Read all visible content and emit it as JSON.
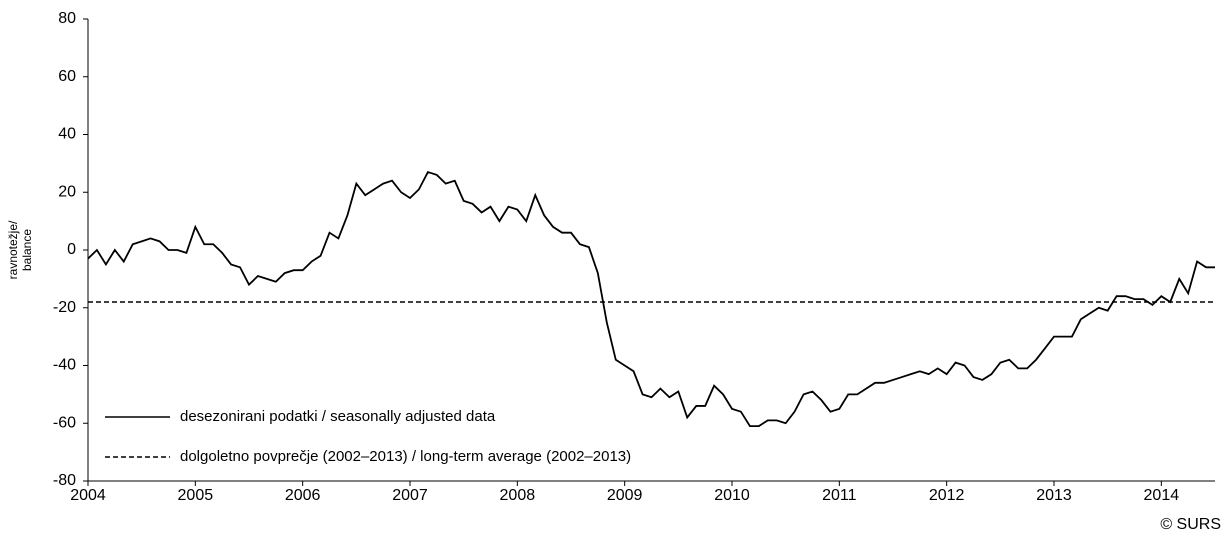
{
  "chart_data": {
    "type": "line",
    "ylabel": [
      "ravnotežje/",
      "balance"
    ],
    "credit": "© SURS",
    "xlim": [
      2004,
      2014.5
    ],
    "xticks": [
      2004,
      2005,
      2006,
      2007,
      2008,
      2009,
      2010,
      2011,
      2012,
      2013,
      2014
    ],
    "ylim": [
      -80,
      80
    ],
    "yticks": [
      -80,
      -60,
      -40,
      -20,
      0,
      20,
      40,
      60,
      80
    ],
    "legend": "lower left",
    "series": [
      {
        "name": "desezonirani podatki / seasonally adjusted data",
        "color": "#000000",
        "style": "solid",
        "x": [
          2004,
          2004.083,
          2004.167,
          2004.25,
          2004.333,
          2004.417,
          2004.5,
          2004.583,
          2004.667,
          2004.75,
          2004.833,
          2004.917,
          2005,
          2005.083,
          2005.167,
          2005.25,
          2005.333,
          2005.417,
          2005.5,
          2005.583,
          2005.667,
          2005.75,
          2005.833,
          2005.917,
          2006,
          2006.083,
          2006.167,
          2006.25,
          2006.333,
          2006.417,
          2006.5,
          2006.583,
          2006.667,
          2006.75,
          2006.833,
          2006.917,
          2007,
          2007.083,
          2007.167,
          2007.25,
          2007.333,
          2007.417,
          2007.5,
          2007.583,
          2007.667,
          2007.75,
          2007.833,
          2007.917,
          2008,
          2008.083,
          2008.167,
          2008.25,
          2008.333,
          2008.417,
          2008.5,
          2008.583,
          2008.667,
          2008.75,
          2008.833,
          2008.917,
          2009,
          2009.083,
          2009.167,
          2009.25,
          2009.333,
          2009.417,
          2009.5,
          2009.583,
          2009.667,
          2009.75,
          2009.833,
          2009.917,
          2010,
          2010.083,
          2010.167,
          2010.25,
          2010.333,
          2010.417,
          2010.5,
          2010.583,
          2010.667,
          2010.75,
          2010.833,
          2010.917,
          2011,
          2011.083,
          2011.167,
          2011.25,
          2011.333,
          2011.417,
          2011.5,
          2011.583,
          2011.667,
          2011.75,
          2011.833,
          2011.917,
          2012,
          2012.083,
          2012.167,
          2012.25,
          2012.333,
          2012.417,
          2012.5,
          2012.583,
          2012.667,
          2012.75,
          2012.833,
          2012.917,
          2013,
          2013.083,
          2013.167,
          2013.25,
          2013.333,
          2013.417,
          2013.5,
          2013.583,
          2013.667,
          2013.75,
          2013.833,
          2013.917,
          2014,
          2014.083,
          2014.167,
          2014.25,
          2014.333,
          2014.417,
          2014.5
        ],
        "values": [
          -3,
          0,
          -5,
          0,
          -4,
          2,
          3,
          4,
          3,
          0,
          0,
          -1,
          8,
          2,
          2,
          -1,
          -5,
          -6,
          -12,
          -9,
          -10,
          -11,
          -8,
          -7,
          -7,
          -4,
          -2,
          6,
          4,
          12,
          23,
          19,
          21,
          23,
          24,
          20,
          18,
          21,
          27,
          26,
          23,
          24,
          17,
          16,
          13,
          15,
          10,
          15,
          14,
          10,
          19,
          12,
          8,
          6,
          6,
          2,
          1,
          -8,
          -25,
          -38,
          -40,
          -42,
          -50,
          -51,
          -48,
          -51,
          -49,
          -58,
          -54,
          -54,
          -47,
          -50,
          -55,
          -56,
          -61,
          -61,
          -59,
          -59,
          -60,
          -56,
          -50,
          -49,
          -52,
          -56,
          -55,
          -50,
          -50,
          -48,
          -46,
          -46,
          -45,
          -44,
          -43,
          -42,
          -43,
          -41,
          -43,
          -39,
          -40,
          -44,
          -45,
          -43,
          -39,
          -38,
          -41,
          -41,
          -38,
          -34,
          -30,
          -30,
          -30,
          -24,
          -22,
          -20,
          -21,
          -16,
          -16,
          -17,
          -17,
          -19,
          -16,
          -18,
          -10,
          -15,
          -4,
          -6,
          -6
        ]
      },
      {
        "name": "dolgoletno povprečje (2002–2013) / long-term average (2002–2013)",
        "color": "#000000",
        "style": "dashed",
        "x": [
          2004,
          2014.5
        ],
        "values": [
          -18,
          -18
        ]
      }
    ]
  }
}
